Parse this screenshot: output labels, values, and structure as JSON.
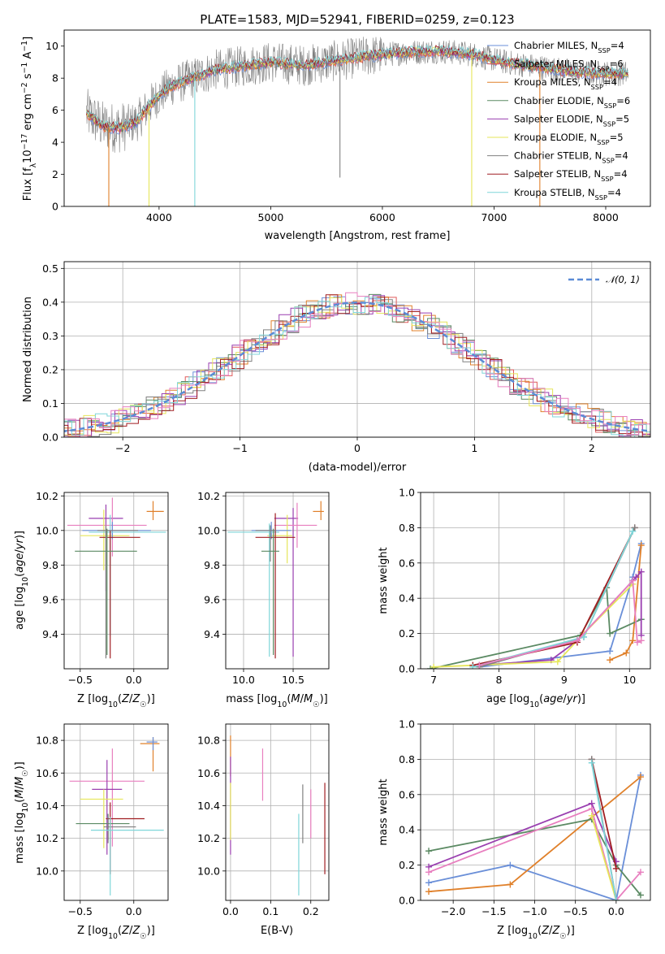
{
  "figure": {
    "title": "PLATE=1583, MJD=52941, FIBERID=0259, z=0.123",
    "colors": {
      "Chabrier MILES": "#6a8fd8",
      "Salpeter MILES": "#e05a5a",
      "Kroupa MILES": "#e0802a",
      "Chabrier ELODIE": "#5b8a63",
      "Salpeter ELODIE": "#9a3fb0",
      "Kroupa ELODIE": "#e6e65a",
      "Chabrier STELIB": "#808080",
      "Salpeter STELIB": "#a01e22",
      "Kroupa STELIB": "#7fd6d9",
      "extra_pink": "#e87fbf"
    }
  },
  "chart_data": [
    {
      "id": "spectrum",
      "type": "line",
      "title": "PLATE=1583, MJD=52941, FIBERID=0259, z=0.123",
      "xlabel": "wavelength [Angstrom, rest frame]",
      "ylabel": "Flux [f_λ 10^-17 erg cm^-2 s^-1 A^-1]",
      "xlim": [
        3150,
        8400
      ],
      "ylim": [
        0,
        11
      ],
      "xticks": [
        4000,
        5000,
        6000,
        7000,
        8000
      ],
      "yticks": [
        0,
        2,
        4,
        6,
        8,
        10
      ],
      "grid": false,
      "legend_position": "right",
      "data_x_range": [
        3350,
        8200
      ],
      "continuum": {
        "x": [
          3350,
          3500,
          3650,
          3800,
          3950,
          4100,
          4300,
          4500,
          4700,
          5000,
          5300,
          5600,
          5900,
          6200,
          6500,
          6800,
          7100,
          7400,
          7700,
          8000,
          8200
        ],
        "y": [
          5.8,
          5.0,
          4.9,
          5.3,
          6.6,
          7.5,
          8.0,
          8.5,
          8.7,
          9.0,
          8.8,
          9.1,
          9.4,
          9.6,
          9.7,
          9.5,
          9.0,
          8.7,
          8.4,
          8.3,
          8.3
        ]
      },
      "series": [
        {
          "name": "Chabrier MILES, N_SSP=4",
          "color": "#6a8fd8"
        },
        {
          "name": "Salpeter MILES, N_SSP=6",
          "color": "#e05a5a"
        },
        {
          "name": "Kroupa MILES, N_SSP=4",
          "color": "#e0802a"
        },
        {
          "name": "Chabrier ELODIE, N_SSP=6",
          "color": "#5b8a63"
        },
        {
          "name": "Salpeter ELODIE, N_SSP=5",
          "color": "#9a3fb0"
        },
        {
          "name": "Kroupa ELODIE, N_SSP=5",
          "color": "#e6e65a"
        },
        {
          "name": "Chabrier STELIB, N_SSP=4",
          "color": "#808080"
        },
        {
          "name": "Salpeter STELIB, N_SSP=4",
          "color": "#a01e22"
        },
        {
          "name": "Kroupa STELIB, N_SSP=4",
          "color": "#7fd6d9"
        }
      ],
      "drop_lines": [
        {
          "x": 3550,
          "color": "#e0802a"
        },
        {
          "x": 3910,
          "color": "#e6e65a"
        },
        {
          "x": 4320,
          "color": "#7fd6d9"
        },
        {
          "x": 6800,
          "color": "#e6e65a"
        },
        {
          "x": 7410,
          "color": "#e0802a"
        },
        {
          "x": 5620,
          "color": "#808080",
          "y_bottom": 1.8
        }
      ]
    },
    {
      "id": "residuals",
      "type": "histogram",
      "xlabel": "(data-model)/error",
      "ylabel": "Normed distribution",
      "xlim": [
        -2.5,
        2.5
      ],
      "ylim": [
        0,
        0.52
      ],
      "xticks": [
        -2,
        -1,
        0,
        1,
        2
      ],
      "xtick_labels": [
        "−2",
        "−1",
        "0",
        "1",
        "2"
      ],
      "yticks": [
        0.0,
        0.1,
        0.2,
        0.3,
        0.4,
        0.5
      ],
      "grid": true,
      "legend": {
        "label": "𝒩(0, 1)",
        "position": "top-right"
      },
      "gaussian": {
        "mean": 0,
        "sigma": 1,
        "color": "#5b8bd6"
      },
      "bin_width": 0.1,
      "series_colors": [
        "#6a8fd8",
        "#e05a5a",
        "#e0802a",
        "#5b8a63",
        "#9a3fb0",
        "#e6e65a",
        "#808080",
        "#a01e22",
        "#7fd6d9",
        "#e87fbf"
      ]
    },
    {
      "id": "age_vs_Z",
      "type": "errorbar",
      "xlabel": "Z [log10(Z/Z☉)]",
      "ylabel": "age [log10(age/yr)]",
      "xlim": [
        -0.65,
        0.32
      ],
      "ylim": [
        9.2,
        10.22
      ],
      "xticks": [
        -0.5,
        0.0
      ],
      "xtick_labels": [
        "−0.5",
        "0.0"
      ],
      "yticks": [
        9.4,
        9.6,
        9.8,
        10.0,
        10.2
      ],
      "ytick_labels": [
        "9.4",
        "9.6",
        "9.8",
        "10.0",
        "10.2"
      ],
      "grid": true,
      "points": [
        {
          "color": "#e0802a",
          "x": 0.18,
          "xerr": [
            0.06,
            0.1
          ],
          "y": 10.11,
          "yerr": [
            0.05,
            0.06
          ]
        },
        {
          "color": "#9a3fb0",
          "x": -0.26,
          "xerr": [
            0.16,
            0.16
          ],
          "y": 10.07,
          "yerr": [
            0.42,
            0.08
          ]
        },
        {
          "color": "#e87fbf",
          "x": -0.2,
          "xerr": [
            0.42,
            0.32
          ],
          "y": 10.03,
          "yerr": [
            0.18,
            0.16
          ]
        },
        {
          "color": "#e6e65a",
          "x": -0.28,
          "xerr": [
            0.22,
            0.24
          ],
          "y": 9.97,
          "yerr": [
            0.2,
            0.15
          ]
        },
        {
          "color": "#6a8fd8",
          "x": -0.2,
          "xerr": [
            0.28,
            0.36
          ],
          "y": 10.0,
          "yerr": [
            0.05,
            0.05
          ]
        },
        {
          "color": "#7fd6d9",
          "x": -0.22,
          "xerr": [
            0.2,
            0.52
          ],
          "y": 9.99,
          "yerr": [
            0.6,
            0.1
          ]
        },
        {
          "color": "#a01e22",
          "x": -0.22,
          "xerr": [
            0.1,
            0.28
          ],
          "y": 9.96,
          "yerr": [
            0.7,
            0.04
          ]
        },
        {
          "color": "#808080",
          "x": -0.26,
          "xerr": [
            0.08,
            0.3
          ],
          "y": 10.0,
          "yerr": [
            0.74,
            0.03
          ]
        },
        {
          "color": "#5b8a63",
          "x": -0.25,
          "xerr": [
            0.3,
            0.28
          ],
          "y": 9.88,
          "yerr": [
            0.6,
            0.13
          ]
        }
      ]
    },
    {
      "id": "age_vs_mass",
      "type": "errorbar",
      "xlabel": "mass [log10(M/M☉)]",
      "ylabel": "",
      "xlim": [
        9.82,
        10.86
      ],
      "ylim": [
        9.2,
        10.22
      ],
      "xticks": [
        10.0,
        10.5
      ],
      "xtick_labels": [
        "10.0",
        "10.5"
      ],
      "yticks": [
        9.4,
        9.6,
        9.8,
        10.0,
        10.2
      ],
      "ytick_labels": [
        "9.4",
        "9.6",
        "9.8",
        "10.0",
        "10.2"
      ],
      "grid": true,
      "points": [
        {
          "color": "#e0802a",
          "x": 10.78,
          "xerr": [
            0.08,
            0.03
          ],
          "y": 10.11,
          "yerr": [
            0.05,
            0.06
          ]
        },
        {
          "color": "#9a3fb0",
          "x": 10.5,
          "xerr": [
            0.19,
            0.05
          ],
          "y": 10.07,
          "yerr": [
            0.8,
            0.06
          ]
        },
        {
          "color": "#e87fbf",
          "x": 10.54,
          "xerr": [
            0.23,
            0.2
          ],
          "y": 10.03,
          "yerr": [
            0.13,
            0.13
          ]
        },
        {
          "color": "#e6e65a",
          "x": 10.44,
          "xerr": [
            0.2,
            0.05
          ],
          "y": 9.97,
          "yerr": [
            0.16,
            0.12
          ]
        },
        {
          "color": "#6a8fd8",
          "x": 10.28,
          "xerr": [
            0.2,
            0.2
          ],
          "y": 10.0,
          "yerr": [
            0.05,
            0.05
          ]
        },
        {
          "color": "#7fd6d9",
          "x": 10.26,
          "xerr": [
            0.42,
            0.1
          ],
          "y": 9.99,
          "yerr": [
            0.72,
            0.05
          ]
        },
        {
          "color": "#a01e22",
          "x": 10.32,
          "xerr": [
            0.2,
            0.2
          ],
          "y": 9.96,
          "yerr": [
            0.7,
            0.14
          ]
        },
        {
          "color": "#808080",
          "x": 10.27,
          "xerr": [
            0.15,
            0.06
          ],
          "y": 10.0,
          "yerr": [
            0.18,
            0.03
          ]
        },
        {
          "color": "#5b8a63",
          "x": 10.3,
          "xerr": [
            0.12,
            0.06
          ],
          "y": 9.88,
          "yerr": [
            0.6,
            0.13
          ]
        }
      ]
    },
    {
      "id": "mass_weight_vs_age",
      "type": "line",
      "xlabel": "age [log10(age/yr)]",
      "ylabel": "mass weight",
      "xlim": [
        6.8,
        10.32
      ],
      "ylim": [
        0,
        1.0
      ],
      "xticks": [
        7,
        8,
        9,
        10
      ],
      "yticks": [
        0.0,
        0.2,
        0.4,
        0.6,
        0.8,
        1.0
      ],
      "grid": true,
      "series": [
        {
          "color": "#6a8fd8",
          "x": [
            7.7,
            9.7,
            10.05,
            10.18
          ],
          "y": [
            0.01,
            0.1,
            0.52,
            0.71
          ]
        },
        {
          "color": "#e0802a",
          "x": [
            9.7,
            9.95,
            10.05,
            10.18
          ],
          "y": [
            0.05,
            0.09,
            0.16,
            0.7
          ]
        },
        {
          "color": "#5b8a63",
          "x": [
            6.95,
            9.25,
            9.65,
            9.7,
            10.18
          ],
          "y": [
            0.0,
            0.19,
            0.46,
            0.2,
            0.28
          ]
        },
        {
          "color": "#9a3fb0",
          "x": [
            7.7,
            8.8,
            9.2,
            10.1,
            10.18,
            10.18
          ],
          "y": [
            0.02,
            0.05,
            0.16,
            0.52,
            0.55,
            0.19
          ]
        },
        {
          "color": "#e6e65a",
          "x": [
            7.0,
            8.9,
            9.3,
            10.05
          ],
          "y": [
            0.01,
            0.04,
            0.2,
            0.48
          ]
        },
        {
          "color": "#a01e22",
          "x": [
            7.6,
            9.2,
            10.08
          ],
          "y": [
            0.02,
            0.15,
            0.8
          ]
        },
        {
          "color": "#808080",
          "x": [
            7.7,
            9.3,
            10.08
          ],
          "y": [
            0.01,
            0.18,
            0.8
          ]
        },
        {
          "color": "#7fd6d9",
          "x": [
            7.6,
            9.3,
            10.05
          ],
          "y": [
            0.01,
            0.18,
            0.78
          ]
        },
        {
          "color": "#e87fbf",
          "x": [
            7.7,
            9.2,
            10.05,
            10.12,
            10.18
          ],
          "y": [
            0.02,
            0.16,
            0.5,
            0.15,
            0.16
          ]
        }
      ]
    },
    {
      "id": "mass_vs_Z",
      "type": "errorbar",
      "xlabel": "Z [log10(Z/Z☉)]",
      "ylabel": "mass [log10(M/M☉)]",
      "xlim": [
        -0.65,
        0.32
      ],
      "ylim": [
        9.82,
        10.9
      ],
      "xticks": [
        -0.5,
        0.0
      ],
      "xtick_labels": [
        "−0.5",
        "0.0"
      ],
      "yticks": [
        10.0,
        10.2,
        10.4,
        10.6,
        10.8
      ],
      "ytick_labels": [
        "10.0",
        "10.2",
        "10.4",
        "10.6",
        "10.8"
      ],
      "grid": true,
      "points": [
        {
          "color": "#e0802a",
          "x": 0.18,
          "xerr": [
            0.12,
            0.06
          ],
          "y": 10.78,
          "yerr": [
            0.17,
            0.04
          ]
        },
        {
          "color": "#6a8fd8",
          "x": 0.18,
          "xerr": [
            0.06,
            0.04
          ],
          "y": 10.79,
          "yerr": [
            0.05,
            0.03
          ]
        },
        {
          "color": "#e87fbf",
          "x": -0.2,
          "xerr": [
            0.4,
            0.3
          ],
          "y": 10.55,
          "yerr": [
            0.4,
            0.2
          ]
        },
        {
          "color": "#9a3fb0",
          "x": -0.25,
          "xerr": [
            0.14,
            0.14
          ],
          "y": 10.5,
          "yerr": [
            0.4,
            0.18
          ]
        },
        {
          "color": "#e6e65a",
          "x": -0.28,
          "xerr": [
            0.22,
            0.18
          ],
          "y": 10.44,
          "yerr": [
            0.3,
            0.06
          ]
        },
        {
          "color": "#a01e22",
          "x": -0.22,
          "xerr": [
            0.04,
            0.32
          ],
          "y": 10.32,
          "yerr": [
            0.34,
            0.1
          ]
        },
        {
          "color": "#5b8a63",
          "x": -0.24,
          "xerr": [
            0.3,
            0.2
          ],
          "y": 10.29,
          "yerr": [
            0.1,
            0.06
          ]
        },
        {
          "color": "#808080",
          "x": -0.24,
          "xerr": [
            0.04,
            0.26
          ],
          "y": 10.27,
          "yerr": [
            0.1,
            0.06
          ]
        },
        {
          "color": "#7fd6d9",
          "x": -0.22,
          "xerr": [
            0.18,
            0.5
          ],
          "y": 10.25,
          "yerr": [
            0.4,
            0.08
          ]
        }
      ]
    },
    {
      "id": "mass_vs_ebv",
      "type": "errorbar",
      "xlabel": "E(B-V)",
      "ylabel": "",
      "xlim": [
        -0.012,
        0.245
      ],
      "ylim": [
        9.82,
        10.9
      ],
      "xticks": [
        0.0,
        0.1,
        0.2
      ],
      "xtick_labels": [
        "0.0",
        "0.1",
        "0.2"
      ],
      "yticks": [
        10.0,
        10.2,
        10.4,
        10.6,
        10.8
      ],
      "ytick_labels": [
        "10.0",
        "10.2",
        "10.4",
        "10.6",
        "10.8"
      ],
      "grid": true,
      "points": [
        {
          "color": "#e0802a",
          "x": 0.0,
          "y": 10.78,
          "yerr": [
            0.2,
            0.05
          ]
        },
        {
          "color": "#9a3fb0",
          "x": 0.0,
          "y": 10.5,
          "yerr": [
            0.4,
            0.2
          ]
        },
        {
          "color": "#e6e65a",
          "x": 0.0,
          "y": 10.44,
          "yerr": [
            0.25,
            0.1
          ]
        },
        {
          "color": "#e87fbf",
          "x": 0.08,
          "y": 10.55,
          "yerr": [
            0.12,
            0.2
          ]
        },
        {
          "color": "#7fd6d9",
          "x": 0.17,
          "y": 10.25,
          "yerr": [
            0.4,
            0.1
          ]
        },
        {
          "color": "#808080",
          "x": 0.18,
          "y": 10.27,
          "yerr": [
            0.1,
            0.26
          ]
        },
        {
          "color": "#e87fbf",
          "x": 0.2,
          "y": 10.3,
          "yerr": [
            0.1,
            0.2
          ]
        },
        {
          "color": "#a01e22",
          "x": 0.235,
          "y": 10.32,
          "yerr": [
            0.34,
            0.22
          ]
        }
      ]
    },
    {
      "id": "mass_weight_vs_Z",
      "type": "line",
      "xlabel": "Z [log10(Z/Z☉)]",
      "ylabel": "mass weight",
      "xlim": [
        -2.4,
        0.42
      ],
      "ylim": [
        0,
        1.0
      ],
      "xticks": [
        -2.0,
        -1.5,
        -1.0,
        -0.5,
        0.0
      ],
      "xtick_labels": [
        "−2.0",
        "−1.5",
        "−1.0",
        "−0.5",
        "0.0"
      ],
      "yticks": [
        0.0,
        0.2,
        0.4,
        0.6,
        0.8,
        1.0
      ],
      "grid": true,
      "series": [
        {
          "color": "#6a8fd8",
          "x": [
            -2.3,
            -1.3,
            0.0,
            0.3
          ],
          "y": [
            0.1,
            0.2,
            0.0,
            0.71
          ]
        },
        {
          "color": "#e0802a",
          "x": [
            -2.3,
            -1.3,
            0.3
          ],
          "y": [
            0.05,
            0.09,
            0.7
          ]
        },
        {
          "color": "#5b8a63",
          "x": [
            -2.3,
            -0.3,
            0.0,
            0.3
          ],
          "y": [
            0.28,
            0.46,
            0.2,
            0.03
          ]
        },
        {
          "color": "#9a3fb0",
          "x": [
            -2.3,
            -0.3,
            0.0
          ],
          "y": [
            0.19,
            0.55,
            0.22
          ]
        },
        {
          "color": "#e87fbf",
          "x": [
            -2.3,
            -0.3,
            0.0,
            0.3
          ],
          "y": [
            0.16,
            0.52,
            0.0,
            0.16
          ]
        },
        {
          "color": "#e6e65a",
          "x": [
            -0.3,
            0.0
          ],
          "y": [
            0.48,
            0.0
          ]
        },
        {
          "color": "#a01e22",
          "x": [
            -0.3,
            0.0
          ],
          "y": [
            0.8,
            0.18
          ]
        },
        {
          "color": "#808080",
          "x": [
            -0.3,
            0.0
          ],
          "y": [
            0.8,
            0.0
          ]
        },
        {
          "color": "#7fd6d9",
          "x": [
            -0.3,
            0.0
          ],
          "y": [
            0.78,
            0.0
          ]
        }
      ]
    }
  ]
}
